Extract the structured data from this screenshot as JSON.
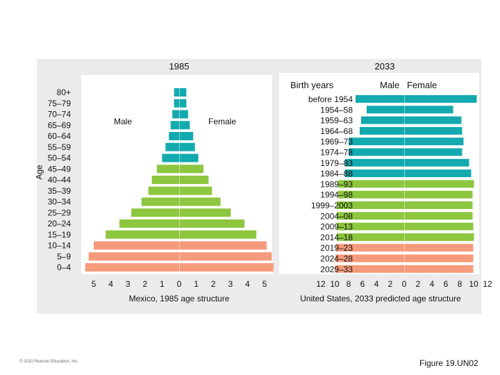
{
  "copyright": "© 2010 Pearson Education, Inc.",
  "figure_label": "Figure 19.UN02",
  "colors": {
    "post_reproductive": "#12aaae",
    "reproductive": "#8dc63f",
    "pre_reproductive": "#f59a7b"
  },
  "chart_data": [
    {
      "type": "bar",
      "title": "1985",
      "subtitle": "Mexico, 1985 age structure",
      "ylabel": "Age",
      "xlabel": "",
      "legend": {
        "male": "Male",
        "female": "Female"
      },
      "x_ticks": [
        "5",
        "4",
        "3",
        "2",
        "1",
        "0",
        "1",
        "2",
        "3",
        "4",
        "5"
      ],
      "xlim": [
        -5,
        5
      ],
      "categories": [
        "80+",
        "75–79",
        "70–74",
        "65–69",
        "60–64",
        "55–59",
        "50–54",
        "45–49",
        "40–44",
        "35–39",
        "30–34",
        "25–29",
        "20–24",
        "15–19",
        "10–14",
        "5–9",
        "0–4"
      ],
      "series": [
        {
          "name": "Male",
          "values": [
            0.3,
            0.3,
            0.4,
            0.5,
            0.6,
            0.8,
            1.0,
            1.3,
            1.6,
            1.8,
            2.2,
            2.8,
            3.5,
            4.3,
            5.0,
            5.3,
            5.5
          ]
        },
        {
          "name": "Female",
          "values": [
            0.4,
            0.4,
            0.5,
            0.6,
            0.8,
            0.9,
            1.1,
            1.4,
            1.7,
            1.9,
            2.4,
            3.0,
            3.8,
            4.5,
            5.1,
            5.4,
            5.5
          ]
        }
      ],
      "grid": false
    },
    {
      "type": "bar",
      "title": "2033",
      "subtitle": "United States, 2033 predicted age structure",
      "category_header": "Birth years",
      "legend": {
        "male": "Male",
        "female": "Female"
      },
      "x_ticks": [
        "12",
        "10",
        "8",
        "6",
        "4",
        "2",
        "0",
        "2",
        "4",
        "6",
        "8",
        "10",
        "12"
      ],
      "xlim": [
        -12,
        12
      ],
      "categories": [
        "before 1954",
        "1954–58",
        "1959–63",
        "1964–68",
        "1969–73",
        "1974–78",
        "1979–83",
        "1984–88",
        "1989–93",
        "1994–98",
        "1999–2003",
        "2004–08",
        "2009–13",
        "2014–18",
        "2019–23",
        "2024–28",
        "2029–33"
      ],
      "series": [
        {
          "name": "Male",
          "values": [
            7.0,
            5.4,
            6.2,
            6.4,
            8.0,
            8.0,
            8.5,
            8.5,
            9.5,
            9.5,
            9.7,
            9.7,
            9.7,
            9.7,
            9.8,
            9.9,
            9.9
          ]
        },
        {
          "name": "Female",
          "values": [
            10.4,
            7.0,
            8.2,
            8.3,
            8.5,
            8.3,
            9.3,
            9.6,
            10.0,
            9.8,
            9.8,
            9.8,
            9.9,
            10.0,
            9.9,
            9.9,
            9.9
          ]
        }
      ],
      "grid": false
    }
  ]
}
